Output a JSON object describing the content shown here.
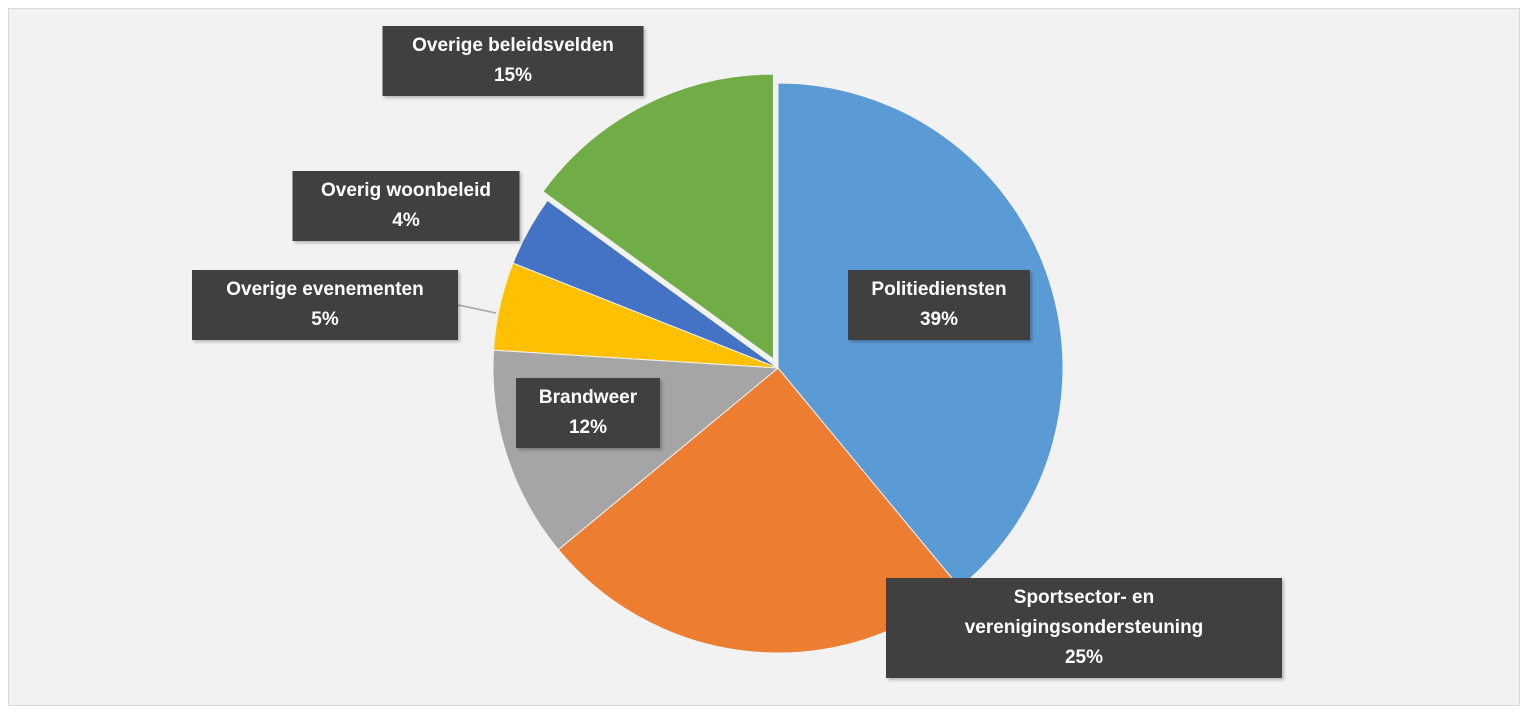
{
  "chart_data": {
    "type": "pie",
    "categories": [
      "Politiediensten",
      "Sportsector- en verenigingsondersteuning",
      "Brandweer",
      "Overige evenementen",
      "Overig woonbeleid",
      "Overige beleidsvelden"
    ],
    "values": [
      39,
      25,
      12,
      5,
      4,
      15
    ],
    "value_labels": [
      "39%",
      "25%",
      "12%",
      "5%",
      "4%",
      "15%"
    ],
    "colors": [
      "#5b9bd5",
      "#ed7d31",
      "#a5a5a5",
      "#ffc000",
      "#4472c4",
      "#70ad47"
    ]
  }
}
